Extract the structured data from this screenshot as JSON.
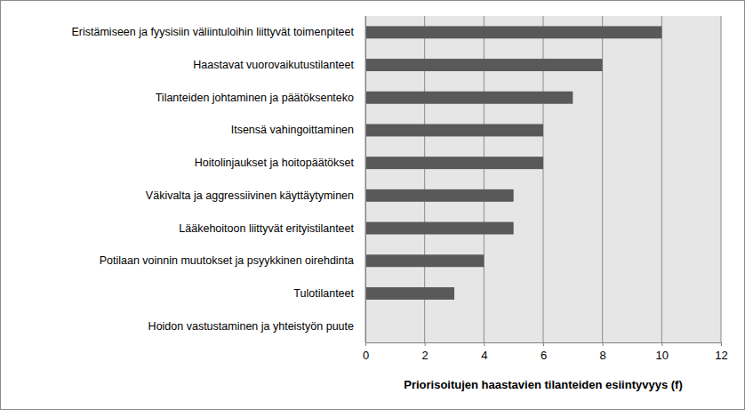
{
  "chart_data": {
    "type": "bar",
    "orientation": "horizontal",
    "categories": [
      "Eristämiseen ja fyysisiin väliintuloihin liittyvät toimenpiteet",
      "Haastavat vuorovaikutustilanteet",
      "Tilanteiden johtaminen ja päätöksenteko",
      "Itsensä vahingoittaminen",
      "Hoitolinjaukset ja hoitopäätökset",
      "Väkivalta ja aggressiivinen käyttäytyminen",
      "Lääkehoitoon liittyvät erityistilanteet",
      "Potilaan voinnin muutokset ja psyykkinen oirehdinta",
      "Tulotilanteet",
      "Hoidon vastustaminen ja yhteistyön puute"
    ],
    "values": [
      10,
      8,
      7,
      6,
      6,
      5,
      5,
      4,
      3,
      0
    ],
    "color": "#595959",
    "xlim": [
      0,
      12
    ],
    "xticks": [
      0,
      2,
      4,
      6,
      8,
      10,
      12
    ],
    "grid": true,
    "x_label": "Priorisoitujen haastavien tilanteiden esiintyvyys (f)"
  }
}
